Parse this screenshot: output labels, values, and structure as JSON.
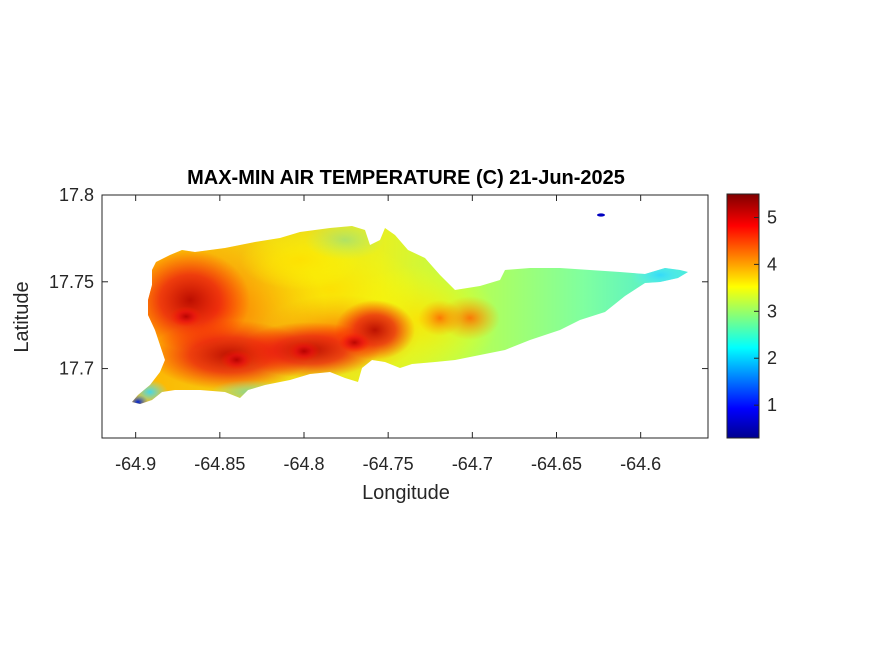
{
  "title": "MAX-MIN AIR TEMPERATURE (C) 21-Jun-2025",
  "chart_data": {
    "type": "heatmap",
    "title": "MAX-MIN AIR TEMPERATURE (C) 21-Jun-2025",
    "xlabel": "Longitude",
    "ylabel": "Latitude",
    "xlim": [
      -64.92,
      -64.56
    ],
    "ylim": [
      17.66,
      17.8
    ],
    "x_ticks": [
      -64.9,
      -64.85,
      -64.8,
      -64.75,
      -64.7,
      -64.65,
      -64.6
    ],
    "x_tick_labels": [
      "-64.9",
      "-64.85",
      "-64.8",
      "-64.75",
      "-64.7",
      "-64.65",
      "-64.6"
    ],
    "y_ticks": [
      17.7,
      17.75,
      17.8
    ],
    "y_tick_labels": [
      "17.7",
      "17.75",
      "17.8"
    ],
    "colormap": "jet",
    "clim": [
      0.3,
      5.5
    ],
    "colorbar_ticks": [
      1,
      2,
      3,
      4,
      5
    ],
    "colorbar_tick_labels": [
      "1",
      "2",
      "3",
      "4",
      "5"
    ],
    "colors": {
      "hot": "#d7191c",
      "warm": "#ff7f00",
      "mild": "#ffff33",
      "cool": "#4fe3ff",
      "cold": "#0000b4"
    },
    "samples": [
      {
        "lon": -64.87,
        "lat": 17.73,
        "value": 5.0
      },
      {
        "lon": -64.84,
        "lat": 17.705,
        "value": 5.4
      },
      {
        "lon": -64.8,
        "lat": 17.71,
        "value": 5.1
      },
      {
        "lon": -64.77,
        "lat": 17.715,
        "value": 5.2
      },
      {
        "lon": -64.75,
        "lat": 17.725,
        "value": 4.6
      },
      {
        "lon": -64.72,
        "lat": 17.73,
        "value": 4.4
      },
      {
        "lon": -64.8,
        "lat": 17.755,
        "value": 3.3
      },
      {
        "lon": -64.76,
        "lat": 17.77,
        "value": 3.2
      },
      {
        "lon": -64.67,
        "lat": 17.735,
        "value": 3.0
      },
      {
        "lon": -64.62,
        "lat": 17.74,
        "value": 2.9
      },
      {
        "lon": -64.58,
        "lat": 17.755,
        "value": 2.0
      },
      {
        "lon": -64.9,
        "lat": 17.68,
        "value": 0.5
      }
    ]
  }
}
